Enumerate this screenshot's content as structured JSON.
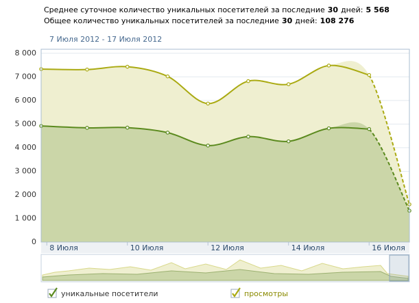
{
  "header": {
    "line1": [
      "Среднее суточное количество уникальных посетителей за последние",
      "30",
      "дней:",
      "5 568"
    ],
    "line2": [
      "Общее количество уникальных посетителей за последние",
      "30",
      "дней:",
      "108 276"
    ]
  },
  "chart_data": {
    "type": "area",
    "subtitle": "7 Июля 2012 - 17 Июля 2012",
    "x": [
      7.86,
      9,
      10,
      11,
      12,
      13,
      14,
      15,
      16,
      17
    ],
    "xlim": [
      7.86,
      17
    ],
    "xticks": [
      {
        "value": 8,
        "label": "8 Июля"
      },
      {
        "value": 10,
        "label": "10 Июля"
      },
      {
        "value": 12,
        "label": "12 Июля"
      },
      {
        "value": 14,
        "label": "14 Июля"
      },
      {
        "value": 16,
        "label": "16 Июля"
      }
    ],
    "ylim": [
      0,
      8170
    ],
    "yticks": [
      0,
      {
        "value": 1000,
        "label": "1 000"
      },
      {
        "value": 2000,
        "label": "2 000"
      },
      {
        "value": 3000,
        "label": "3 000"
      },
      {
        "value": 4000,
        "label": "4 000"
      },
      {
        "value": 5000,
        "label": "5 000"
      },
      {
        "value": 6000,
        "label": "6 000"
      },
      {
        "value": 7000,
        "label": "7 000"
      },
      {
        "value": 8000,
        "label": "8 000"
      }
    ],
    "grid": true,
    "last_segment_dashed": true,
    "series": [
      {
        "name": "просмотры",
        "color": "#aaaa12",
        "fill": "#efefd0",
        "values": [
          7330,
          7310,
          7430,
          7020,
          5870,
          6820,
          6690,
          7480,
          7080,
          1600
        ]
      },
      {
        "name": "уникальные посетители",
        "color": "#5b8a1e",
        "fill": "#cbd6a8",
        "values": [
          4920,
          4840,
          4850,
          4640,
          4090,
          4470,
          4270,
          4820,
          4790,
          1330
        ]
      }
    ]
  }
}
